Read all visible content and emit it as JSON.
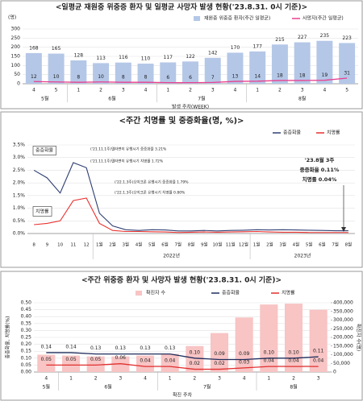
{
  "chart_data": [
    {
      "type": "combo",
      "title": "<일평균 재원중 위중증 환자 및 일평균 사망자 발생 현황('23.8.31. 0시 기준)>",
      "y_label": "(명)",
      "x_label": "발생 주차(WEEK)",
      "groups": [
        {
          "label": "5월",
          "categories": [
            "4",
            "5"
          ]
        },
        {
          "label": "6월",
          "categories": [
            "1",
            "2",
            "3",
            "4"
          ]
        },
        {
          "label": "7월",
          "categories": [
            "1",
            "2",
            "3",
            "4"
          ]
        },
        {
          "label": "8월",
          "categories": [
            "1",
            "2",
            "3",
            "4",
            "5"
          ]
        }
      ],
      "ylim": [
        0,
        300
      ],
      "yticks": [
        0,
        50,
        100,
        150,
        200,
        250,
        300
      ],
      "grid": true,
      "legend": "top-right",
      "series": [
        {
          "name": "재원중 위중증 환자(주간 일평균)",
          "kind": "bar",
          "color": "#b4c7e7",
          "labels": true,
          "values": [
            168,
            165,
            128,
            113,
            116,
            110,
            117,
            122,
            142,
            170,
            177,
            215,
            227,
            235,
            223
          ]
        },
        {
          "name": "사망자(주간 일평균)",
          "kind": "line",
          "color": "#e8408f",
          "labels": true,
          "values": [
            12,
            10,
            8,
            10,
            8,
            8,
            6,
            6,
            7,
            13,
            14,
            18,
            18,
            19,
            31
          ]
        }
      ]
    },
    {
      "type": "line",
      "title": "<주간 치명률 및 중증화율(명, %)>",
      "groups": [
        {
          "label": null,
          "categories": [
            "8",
            "9",
            "10",
            "11",
            "12"
          ]
        },
        {
          "label": "2022년",
          "categories": [
            "1월",
            "2월",
            "3월",
            "4월",
            "5월",
            "6월",
            "7월",
            "8월",
            "9월",
            "10월",
            "11월",
            "12월"
          ]
        },
        {
          "label": "2023년",
          "categories": [
            "1월",
            "2월",
            "3월",
            "4월",
            "5월",
            "6월",
            "7월",
            "8월"
          ]
        }
      ],
      "ylim": [
        0,
        3.5
      ],
      "yticks": [
        {
          "value": 0,
          "label": "0.0%"
        },
        {
          "value": 0.5,
          "label": "0.5%"
        },
        {
          "value": 1,
          "label": "1.0%"
        },
        {
          "value": 1.5,
          "label": "1.5%"
        },
        {
          "value": 2,
          "label": "2.0%"
        },
        {
          "value": 2.5,
          "label": "2.5%"
        },
        {
          "value": 3,
          "label": "3.0%"
        },
        {
          "value": 3.5,
          "label": "3.5%"
        }
      ],
      "grid": true,
      "legend": "top-right",
      "series": [
        {
          "name": "중증화율",
          "kind": "line",
          "color": "#2f3f73",
          "values": [
            2.5,
            2.2,
            1.6,
            2.8,
            2.6,
            0.8,
            0.3,
            0.15,
            0.12,
            0.15,
            0.14,
            0.1,
            0.1,
            0.12,
            0.1,
            0.12,
            0.13,
            0.15,
            0.14,
            0.15,
            0.14,
            0.13,
            0.12,
            0.11,
            0.11
          ]
        },
        {
          "name": "치명률",
          "kind": "line",
          "color": "#e8312f",
          "values": [
            0.35,
            0.4,
            0.5,
            1.3,
            1.4,
            0.4,
            0.12,
            0.08,
            0.08,
            0.07,
            0.06,
            0.04,
            0.05,
            0.06,
            0.05,
            0.06,
            0.07,
            0.08,
            0.06,
            0.05,
            0.05,
            0.04,
            0.04,
            0.04,
            0.04
          ]
        }
      ],
      "annotations": [
        "중증화율",
        "치명률",
        "('21.11.1주)델타변이 유행시기 중증화율 3.21%",
        "('21.11.1주)델타변이 유행시기 치명률 1.72%",
        "('22.1.3주)오미크론 유행시기 중증화율 1.79%",
        "('22.1.3주)오미크론 유행시기 치명률 0.80%",
        "'23.8월 3주",
        "중증화율 0.11%",
        "치명률 0.04%"
      ]
    },
    {
      "type": "combo",
      "title": "<주간 위중증 환자 및 사망자 발생 현황('23.8.31. 0시 기준)>",
      "y_label": "중증화율, 치명률(%)",
      "y2_label": "확진자 수(명)",
      "x_label": "확진 주차",
      "groups": [
        {
          "label": "5월",
          "categories": [
            "4"
          ]
        },
        {
          "label": "6월",
          "categories": [
            "1",
            "2",
            "3",
            "4"
          ]
        },
        {
          "label": "7월",
          "categories": [
            "1",
            "2",
            "3",
            "4"
          ]
        },
        {
          "label": "8월",
          "categories": [
            "1",
            "2",
            "3"
          ]
        }
      ],
      "ylim": [
        0,
        0.5
      ],
      "yticks": [
        {
          "value": 0,
          "label": "0.00"
        },
        {
          "value": 0.05,
          "label": "0.05"
        },
        {
          "value": 0.1,
          "label": "0.10"
        },
        {
          "value": 0.15,
          "label": "0.15"
        },
        {
          "value": 0.2,
          "label": "0.20"
        },
        {
          "value": 0.25,
          "label": "0.25"
        },
        {
          "value": 0.3,
          "label": "0.30"
        },
        {
          "value": 0.35,
          "label": "0.35"
        },
        {
          "value": 0.4,
          "label": "0.40"
        },
        {
          "value": 0.45,
          "label": "0.45"
        },
        {
          "value": 0.5,
          "label": "0.50"
        }
      ],
      "y2lim": [
        0,
        400000
      ],
      "y2ticks": [
        0,
        {
          "value": 50000,
          "label": "50,000"
        },
        {
          "value": 100000,
          "label": "100,000"
        },
        {
          "value": 150000,
          "label": "150,000"
        },
        {
          "value": 200000,
          "label": "200,000"
        },
        {
          "value": 250000,
          "label": "250,000"
        },
        {
          "value": 300000,
          "label": "300,000"
        },
        {
          "value": 350000,
          "label": "350,000"
        },
        {
          "value": 400000,
          "label": "400,000"
        }
      ],
      "grid": true,
      "legend": "top",
      "series": [
        {
          "name": "확진자 수",
          "kind": "bar",
          "axis": "y2",
          "color": "#f8c4c4",
          "values": [
            100000,
            95000,
            90000,
            90000,
            95000,
            105000,
            150000,
            225000,
            315000,
            390000,
            395000,
            360000
          ]
        },
        {
          "name": "중증화율",
          "kind": "line",
          "color": "#1f2d5c",
          "values": [
            0.14,
            0.14,
            0.13,
            0.13,
            0.13,
            0.13,
            0.1,
            0.09,
            0.09,
            0.1,
            0.1,
            0.11
          ],
          "value_labels": [
            "0.14",
            "0.14",
            "0.13",
            "0.13",
            "0.13",
            "0.13",
            "0.10",
            "0.09",
            "0.09",
            "0.10",
            "0.10",
            "0.11"
          ]
        },
        {
          "name": "치명률",
          "kind": "line",
          "color": "#e0302f",
          "values": [
            0.05,
            0.05,
            0.05,
            0.06,
            0.04,
            0.04,
            0.02,
            0.02,
            0.03,
            0.04,
            0.04,
            0.04
          ],
          "value_labels": [
            "0.05",
            "0.05",
            "0.05",
            "0.06",
            "0.04",
            "0.04",
            "0.02",
            "0.02",
            "0.03",
            "0.04",
            "0.04",
            "0.04"
          ]
        }
      ]
    }
  ]
}
